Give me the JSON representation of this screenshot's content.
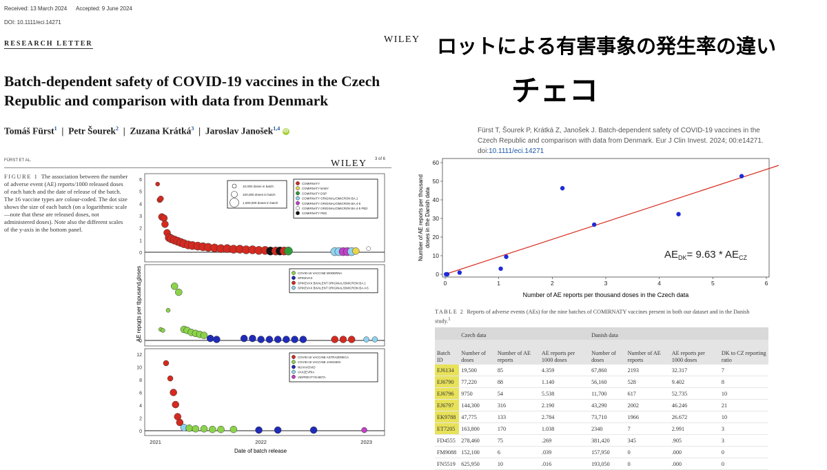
{
  "article": {
    "received": "Received: 13 March 2024",
    "accepted": "Accepted: 9 June 2024",
    "doi": "DOI: 10.1111/eci.14271",
    "section": "RESEARCH LETTER",
    "publisher": "WILEY",
    "title": "Batch-dependent safety of COVID-19 vaccines in the Czech Republic and comparison with data from Denmark",
    "authors": [
      {
        "name": "Tomáš Fürst",
        "sup": "1"
      },
      {
        "name": "Petr Šourek",
        "sup": "2"
      },
      {
        "name": "Zuzana Krátká",
        "sup": "3"
      },
      {
        "name": "Jaroslav Janošek",
        "sup": "1,4"
      }
    ],
    "orcid_label": "iD",
    "running_head": "FÜRST ET AL.",
    "page": "3 of 6"
  },
  "figure1": {
    "label": "FIGURE 1",
    "caption": "The association between the number of adverse event (AE) reports/1000 released doses of each batch and the date of release of the batch. The 16 vaccine types are colour-coded. The dot size shows the size of each batch (on a logarithmic scale—note that these are released doses, not administered doses). Note also the different scales of the y-axis in the bottom panel."
  },
  "overlay": {
    "title_jp": "ロットによる有害事象の発生率の違い",
    "subtitle_jp": "チェコ"
  },
  "citation": {
    "text": "Fürst T, Šourek P, Krátká Z, Janošek J. Batch-dependent safety of COVID-19 vaccines in the Czech Republic and comparison with data from Denmark. Eur J Clin Invest. 2024; 00:e14271. doi:",
    "doi_link": "10.1111/eci.14271"
  },
  "chart_data": [
    {
      "type": "scatter",
      "id": "figure1",
      "panels": [
        {
          "y_ticks": [
            "0",
            "1",
            "2",
            "3",
            "4",
            "5",
            "6"
          ],
          "ylim": [
            0,
            6
          ],
          "legend_sizes": [
            "10,000 doses in batch",
            "100,000 doses in batch",
            "1,000,000 doses in batch"
          ],
          "legend": [
            {
              "name": "COMIRNATY",
              "color": "#d42a20"
            },
            {
              "name": "COMIRNATY BABY",
              "color": "#e9d44a"
            },
            {
              "name": "COMIRNATY DSP",
              "color": "#2f9c3a"
            },
            {
              "name": "COMIRNATY ORIGINAL/OMICRON BA.1",
              "color": "#8fd3f0"
            },
            {
              "name": "COMIRNATY ORIGINAL/OMICRON BA.4-5",
              "color": "#c040c8"
            },
            {
              "name": "COMIRNATY ORIGINAL/OMICRON BA.4-5 PED",
              "color": "#ffffff"
            },
            {
              "name": "COMIRNATY PED",
              "color": "#111111"
            }
          ],
          "points": [
            {
              "x": 2021.02,
              "y": 5.6,
              "s": 3,
              "c": "#d42a20"
            },
            {
              "x": 2021.04,
              "y": 4.3,
              "s": 4,
              "c": "#d42a20"
            },
            {
              "x": 2021.05,
              "y": 4.4,
              "s": 4,
              "c": "#d42a20"
            },
            {
              "x": 2021.06,
              "y": 2.9,
              "s": 5,
              "c": "#d42a20"
            },
            {
              "x": 2021.08,
              "y": 2.8,
              "s": 5,
              "c": "#d42a20"
            },
            {
              "x": 2021.09,
              "y": 2.3,
              "s": 5,
              "c": "#d42a20"
            },
            {
              "x": 2021.11,
              "y": 1.6,
              "s": 5,
              "c": "#d42a20"
            },
            {
              "x": 2021.13,
              "y": 1.2,
              "s": 6,
              "c": "#d42a20"
            },
            {
              "x": 2021.15,
              "y": 1.1,
              "s": 6,
              "c": "#d42a20"
            },
            {
              "x": 2021.18,
              "y": 1.0,
              "s": 6,
              "c": "#d42a20"
            },
            {
              "x": 2021.21,
              "y": 0.9,
              "s": 6,
              "c": "#d42a20"
            },
            {
              "x": 2021.24,
              "y": 0.8,
              "s": 6,
              "c": "#d42a20"
            },
            {
              "x": 2021.27,
              "y": 0.7,
              "s": 6,
              "c": "#d42a20"
            },
            {
              "x": 2021.31,
              "y": 0.6,
              "s": 6,
              "c": "#d42a20"
            },
            {
              "x": 2021.35,
              "y": 0.55,
              "s": 6,
              "c": "#d42a20"
            },
            {
              "x": 2021.4,
              "y": 0.5,
              "s": 6,
              "c": "#d42a20"
            },
            {
              "x": 2021.45,
              "y": 0.45,
              "s": 6,
              "c": "#d42a20"
            },
            {
              "x": 2021.5,
              "y": 0.4,
              "s": 6,
              "c": "#d42a20"
            },
            {
              "x": 2021.56,
              "y": 0.35,
              "s": 6,
              "c": "#d42a20"
            },
            {
              "x": 2021.62,
              "y": 0.3,
              "s": 6,
              "c": "#d42a20"
            },
            {
              "x": 2021.68,
              "y": 0.3,
              "s": 6,
              "c": "#d42a20"
            },
            {
              "x": 2021.74,
              "y": 0.25,
              "s": 6,
              "c": "#d42a20"
            },
            {
              "x": 2021.8,
              "y": 0.25,
              "s": 6,
              "c": "#d42a20"
            },
            {
              "x": 2021.86,
              "y": 0.2,
              "s": 6,
              "c": "#d42a20"
            },
            {
              "x": 2021.92,
              "y": 0.2,
              "s": 6,
              "c": "#d42a20"
            },
            {
              "x": 2021.98,
              "y": 0.15,
              "s": 6,
              "c": "#d42a20"
            },
            {
              "x": 2022.04,
              "y": 0.15,
              "s": 6,
              "c": "#d42a20"
            },
            {
              "x": 2022.09,
              "y": 0.1,
              "s": 6,
              "c": "#111111"
            },
            {
              "x": 2022.14,
              "y": 0.1,
              "s": 6,
              "c": "#d42a20"
            },
            {
              "x": 2022.18,
              "y": 0.1,
              "s": 6,
              "c": "#111111"
            },
            {
              "x": 2022.22,
              "y": 0.1,
              "s": 6,
              "c": "#d42a20"
            },
            {
              "x": 2022.26,
              "y": 0.1,
              "s": 6,
              "c": "#2f9c3a"
            },
            {
              "x": 2022.7,
              "y": 0.05,
              "s": 6,
              "c": "#8fd3f0"
            },
            {
              "x": 2022.74,
              "y": 0.05,
              "s": 6,
              "c": "#8fd3f0"
            },
            {
              "x": 2022.78,
              "y": 0.05,
              "s": 6,
              "c": "#c040c8"
            },
            {
              "x": 2022.82,
              "y": 0.05,
              "s": 6,
              "c": "#c040c8"
            },
            {
              "x": 2022.86,
              "y": 0.05,
              "s": 6,
              "c": "#8fd3f0"
            },
            {
              "x": 2022.9,
              "y": 0.1,
              "s": 5,
              "c": "#e9d44a"
            },
            {
              "x": 2023.02,
              "y": 0.3,
              "s": 3,
              "c": "#ffffff"
            }
          ]
        },
        {
          "y_ticks": [
            "0",
            "1",
            "2",
            "3"
          ],
          "ylim": [
            0,
            3.5
          ],
          "legend": [
            {
              "name": "COVID-19 VACCINE MODERNA",
              "color": "#8bd34a"
            },
            {
              "name": "SPIKEVAX",
              "color": "#1f2bb8"
            },
            {
              "name": "SPIKEVAX BIVALENT ORIGINAL/OMICRON BA.1",
              "color": "#d42a20"
            },
            {
              "name": "SPIKEVAX BIVALENT ORIGINAL/OMICRON BA.4-5",
              "color": "#8fd3f0"
            }
          ],
          "points": [
            {
              "x": 2021.05,
              "y": 0.55,
              "s": 3,
              "c": "#8bd34a"
            },
            {
              "x": 2021.07,
              "y": 0.5,
              "s": 3,
              "c": "#8bd34a"
            },
            {
              "x": 2021.12,
              "y": 1.5,
              "s": 3,
              "c": "#8bd34a"
            },
            {
              "x": 2021.18,
              "y": 2.7,
              "s": 5,
              "c": "#8bd34a"
            },
            {
              "x": 2021.22,
              "y": 2.4,
              "s": 5,
              "c": "#8bd34a"
            },
            {
              "x": 2021.27,
              "y": 0.55,
              "s": 5,
              "c": "#8bd34a"
            },
            {
              "x": 2021.3,
              "y": 0.5,
              "s": 5,
              "c": "#8bd34a"
            },
            {
              "x": 2021.34,
              "y": 0.4,
              "s": 5,
              "c": "#8bd34a"
            },
            {
              "x": 2021.38,
              "y": 0.35,
              "s": 5,
              "c": "#8bd34a"
            },
            {
              "x": 2021.42,
              "y": 0.3,
              "s": 5,
              "c": "#8bd34a"
            },
            {
              "x": 2021.46,
              "y": 0.25,
              "s": 5,
              "c": "#8bd34a"
            },
            {
              "x": 2021.52,
              "y": 0.1,
              "s": 5,
              "c": "#1f2bb8"
            },
            {
              "x": 2021.58,
              "y": 0.05,
              "s": 5,
              "c": "#1f2bb8"
            },
            {
              "x": 2021.84,
              "y": 0.1,
              "s": 5,
              "c": "#1f2bb8"
            },
            {
              "x": 2021.92,
              "y": 0.1,
              "s": 5,
              "c": "#1f2bb8"
            },
            {
              "x": 2022.0,
              "y": 0.05,
              "s": 5,
              "c": "#1f2bb8"
            },
            {
              "x": 2022.08,
              "y": 0.05,
              "s": 5,
              "c": "#1f2bb8"
            },
            {
              "x": 2022.16,
              "y": 0.05,
              "s": 5,
              "c": "#1f2bb8"
            },
            {
              "x": 2022.24,
              "y": 0.05,
              "s": 5,
              "c": "#1f2bb8"
            },
            {
              "x": 2022.32,
              "y": 0.05,
              "s": 5,
              "c": "#1f2bb8"
            },
            {
              "x": 2022.4,
              "y": 0.05,
              "s": 5,
              "c": "#1f2bb8"
            },
            {
              "x": 2022.7,
              "y": 0.05,
              "s": 5,
              "c": "#d42a20"
            },
            {
              "x": 2022.78,
              "y": 0.05,
              "s": 5,
              "c": "#d42a20"
            },
            {
              "x": 2022.86,
              "y": 0.05,
              "s": 5,
              "c": "#d42a20"
            },
            {
              "x": 2023.0,
              "y": 0.05,
              "s": 4,
              "c": "#8fd3f0"
            },
            {
              "x": 2023.08,
              "y": 0.05,
              "s": 4,
              "c": "#8fd3f0"
            }
          ]
        },
        {
          "y_ticks": [
            "0",
            "2",
            "4",
            "6",
            "8",
            "10",
            "12"
          ],
          "ylim": [
            0,
            12
          ],
          "legend": [
            {
              "name": "COVID-19 VACCINE ASTRAZENECA",
              "color": "#d42a20"
            },
            {
              "name": "COVID-19 VACCINE JANSSEN",
              "color": "#8bd34a"
            },
            {
              "name": "NUVAXOVID",
              "color": "#1f2bb8"
            },
            {
              "name": "VAXZEVRIA",
              "color": "#8fd3f0"
            },
            {
              "name": "VIDPREVTYN BETA",
              "color": "#c040c8"
            }
          ],
          "points": [
            {
              "x": 2021.1,
              "y": 10.6,
              "s": 4,
              "c": "#d42a20"
            },
            {
              "x": 2021.14,
              "y": 8.2,
              "s": 4,
              "c": "#d42a20"
            },
            {
              "x": 2021.17,
              "y": 6.0,
              "s": 5,
              "c": "#d42a20"
            },
            {
              "x": 2021.19,
              "y": 4.1,
              "s": 5,
              "c": "#d42a20"
            },
            {
              "x": 2021.21,
              "y": 2.2,
              "s": 5,
              "c": "#d42a20"
            },
            {
              "x": 2021.23,
              "y": 1.3,
              "s": 5,
              "c": "#d42a20"
            },
            {
              "x": 2021.27,
              "y": 0.5,
              "s": 5,
              "c": "#8fd3f0"
            },
            {
              "x": 2021.32,
              "y": 0.4,
              "s": 5,
              "c": "#8bd34a"
            },
            {
              "x": 2021.38,
              "y": 0.3,
              "s": 5,
              "c": "#8bd34a"
            },
            {
              "x": 2021.46,
              "y": 0.3,
              "s": 5,
              "c": "#8bd34a"
            },
            {
              "x": 2021.54,
              "y": 0.2,
              "s": 5,
              "c": "#8bd34a"
            },
            {
              "x": 2021.62,
              "y": 0.2,
              "s": 5,
              "c": "#8bd34a"
            },
            {
              "x": 2021.74,
              "y": 0.2,
              "s": 5,
              "c": "#8bd34a"
            },
            {
              "x": 2021.98,
              "y": 0.1,
              "s": 5,
              "c": "#1f2bb8"
            },
            {
              "x": 2022.16,
              "y": 0.1,
              "s": 5,
              "c": "#1f2bb8"
            },
            {
              "x": 2022.5,
              "y": 0.1,
              "s": 5,
              "c": "#1f2bb8"
            },
            {
              "x": 2022.98,
              "y": 0.1,
              "s": 4,
              "c": "#c040c8"
            }
          ]
        }
      ],
      "x_ticks": [
        "2021",
        "2022",
        "2023"
      ],
      "x_tick_values": [
        2021,
        2022,
        2023
      ],
      "xlim": [
        2020.95,
        2023.12
      ],
      "xlabel": "Date of batch release",
      "ylabel": "AE reports per thousand doses"
    },
    {
      "type": "scatter",
      "id": "dk_vs_cz",
      "xlabel": "Number of AE reports per thousand doses in the Czech data",
      "ylabel_line1": "Number of AE reports per thousand",
      "ylabel_line2": "doses in the Danish data",
      "xlim": [
        0,
        6
      ],
      "ylim": [
        0,
        60
      ],
      "x_ticks": [
        "0",
        "1",
        "2",
        "3",
        "4",
        "5",
        "6"
      ],
      "y_ticks": [
        "0",
        "10",
        "20",
        "30",
        "40",
        "50",
        "60"
      ],
      "x": [
        4.359,
        1.14,
        5.538,
        2.19,
        2.784,
        1.038,
        0.269,
        0.039,
        0.016
      ],
      "y": [
        32.317,
        9.402,
        52.735,
        46.246,
        26.672,
        2.991,
        0.905,
        0,
        0
      ],
      "fit_slope": 9.63,
      "annotation": {
        "lhs": "AE",
        "lhs_sub": "DK",
        "eq": "= 9.63 * AE",
        "rhs_sub": "CZ"
      },
      "point_color": "#1f2bd8",
      "line_color": "#d62b1e"
    }
  ],
  "table2": {
    "label": "TABLE 2",
    "caption": "Reports of adverse events (AEs) for the nine batches of COMIRNATY vaccines present in both our dataset and in the Danish study.",
    "caption_sup": "1",
    "group_headers": [
      "Czech data",
      "Danish data"
    ],
    "columns": [
      "Batch ID",
      "Number of doses",
      "Number of AE reports",
      "AE reports per 1000 doses",
      "Number of doses",
      "Number of AE reports",
      "AE reports per 1000 doses",
      "DK to CZ reporting ratio"
    ],
    "rows": [
      [
        "EJ6134",
        "19,500",
        "85",
        "4.359",
        "67,860",
        "2193",
        "32.317",
        "7"
      ],
      [
        "EJ6790",
        "77,220",
        "88",
        "1.140",
        "56,160",
        "528",
        "9.402",
        "8"
      ],
      [
        "EJ6796",
        "9750",
        "54",
        "5.538",
        "11,700",
        "617",
        "52.735",
        "10"
      ],
      [
        "EJ6797",
        "144,300",
        "316",
        "2.190",
        "43,290",
        "2002",
        "46.246",
        "21"
      ],
      [
        "EK9788",
        "47,775",
        "133",
        "2.784",
        "73,710",
        "1966",
        "26.672",
        "10"
      ],
      [
        "ET7205",
        "163,800",
        "170",
        "1.038",
        "2340",
        "7",
        "2.991",
        "3"
      ],
      [
        "FD4555",
        "278,460",
        "75",
        ".269",
        "381,420",
        "345",
        ".905",
        "3"
      ],
      [
        "FM9088",
        "152,100",
        "6",
        ".039",
        "157,950",
        "0",
        ".000",
        "0"
      ],
      [
        "FN5519",
        "625,950",
        "10",
        ".016",
        "193,050",
        "0",
        ".000",
        "0"
      ]
    ],
    "highlight_color": "#e8e25a",
    "highlighted_batches": 6
  }
}
